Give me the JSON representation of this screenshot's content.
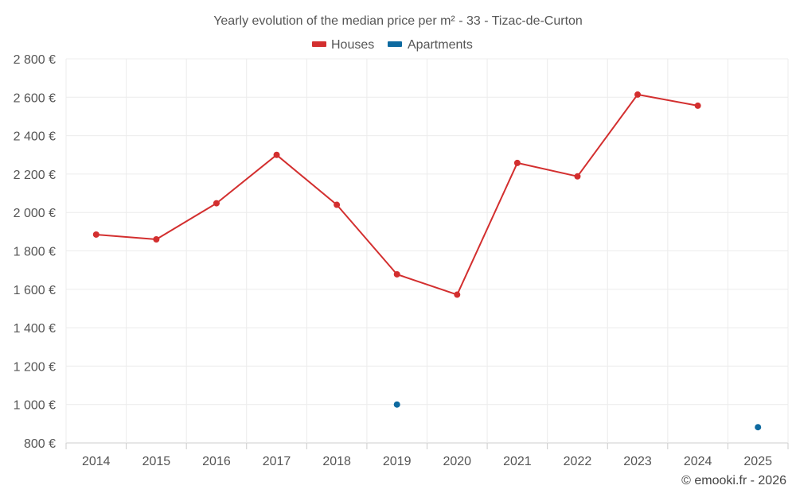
{
  "chart_data": {
    "type": "line",
    "title": "Yearly evolution of the median price per m² - 33 - Tizac-de-Curton",
    "categories": [
      "2014",
      "2015",
      "2016",
      "2017",
      "2018",
      "2019",
      "2020",
      "2021",
      "2022",
      "2023",
      "2024",
      "2025"
    ],
    "y_tick_labels": [
      "800 €",
      "1 000 €",
      "1 200 €",
      "1 400 €",
      "1 600 €",
      "1 800 €",
      "2 000 €",
      "2 200 €",
      "2 400 €",
      "2 600 €",
      "2 800 €"
    ],
    "y_ticks": [
      800,
      1000,
      1200,
      1400,
      1600,
      1800,
      2000,
      2200,
      2400,
      2600,
      2800
    ],
    "ylim": [
      800,
      2800
    ],
    "grid": true,
    "legend_position": "top-center",
    "series": [
      {
        "name": "Houses",
        "color": "#d32f2f",
        "mode": "line+markers",
        "values": [
          1885,
          1860,
          2048,
          2300,
          2040,
          1678,
          1572,
          2258,
          2188,
          2614,
          2556,
          null
        ]
      },
      {
        "name": "Apartments",
        "color": "#0e6aa0",
        "mode": "markers",
        "values": [
          null,
          null,
          null,
          null,
          null,
          1000,
          null,
          null,
          null,
          null,
          null,
          882
        ]
      }
    ]
  },
  "credit": "© emooki.fr - 2026"
}
